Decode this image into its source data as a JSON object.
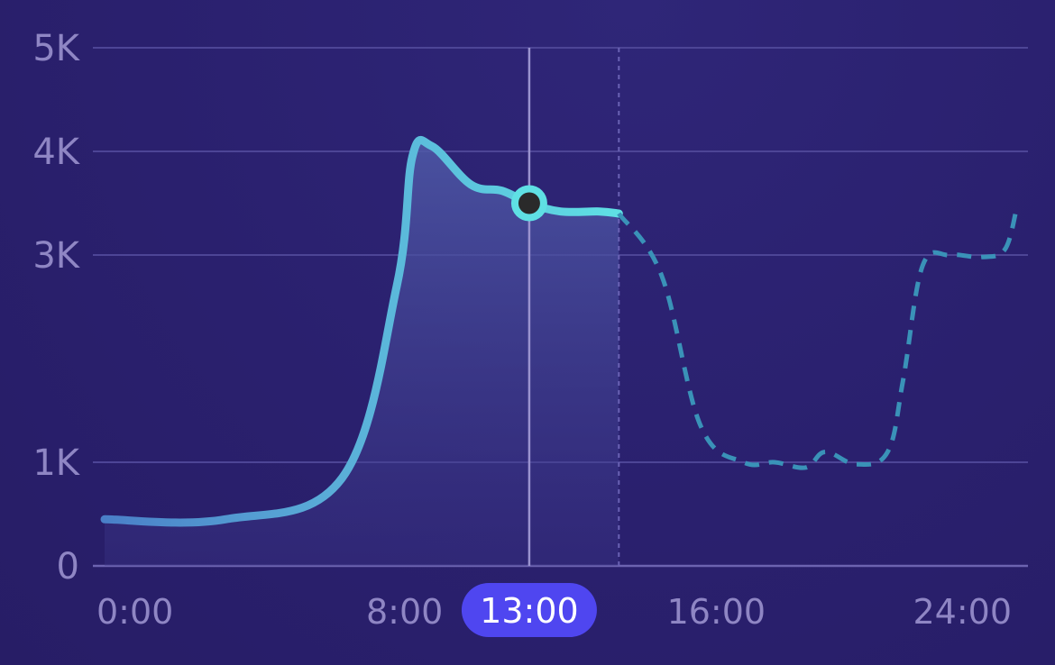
{
  "chart_data": {
    "type": "line",
    "x_unit": "hour",
    "xlim": [
      0,
      24
    ],
    "ylim": [
      0,
      5000
    ],
    "y_ticks": [
      {
        "value": 0,
        "label": "0"
      },
      {
        "value": 1000,
        "label": "1K"
      },
      {
        "value": 3000,
        "label": "3K"
      },
      {
        "value": 4000,
        "label": "4K"
      },
      {
        "value": 5000,
        "label": "5K"
      }
    ],
    "x_ticks": [
      {
        "value": 0,
        "label": "0:00"
      },
      {
        "value": 8,
        "label": "8:00"
      },
      {
        "value": 16,
        "label": "16:00"
      },
      {
        "value": 24,
        "label": "24:00"
      }
    ],
    "grid": true,
    "series": [
      {
        "style": "solid",
        "color": "#5fe0e4",
        "points": [
          [
            0.3,
            450
          ],
          [
            3.4,
            450
          ],
          [
            6.4,
            850
          ],
          [
            7.8,
            2700
          ],
          [
            8.2,
            3950
          ],
          [
            8.7,
            4050
          ],
          [
            9.7,
            3680
          ],
          [
            10.5,
            3620
          ],
          [
            11.2,
            3500
          ],
          [
            12.0,
            3420
          ],
          [
            13.0,
            3420
          ],
          [
            13.5,
            3400
          ]
        ]
      },
      {
        "style": "dashed",
        "color": "#3a92b8",
        "points": [
          [
            13.5,
            3400
          ],
          [
            14.6,
            2800
          ],
          [
            15.6,
            1350
          ],
          [
            16.7,
            1000
          ],
          [
            17.5,
            1000
          ],
          [
            18.3,
            950
          ],
          [
            18.8,
            1100
          ],
          [
            19.6,
            980
          ],
          [
            20.4,
            1100
          ],
          [
            20.8,
            1800
          ],
          [
            21.3,
            2900
          ],
          [
            22.0,
            3000
          ],
          [
            22.8,
            2980
          ],
          [
            23.4,
            3050
          ],
          [
            23.7,
            3430
          ]
        ]
      }
    ],
    "marker": {
      "x": 11.2,
      "y": 3500
    },
    "selected_x_label": "13:00",
    "colors": {
      "line_start": "#4a7fc8",
      "line_end": "#5fe0e4",
      "dashed": "#3a92b8",
      "badge": "#4f46f0",
      "marker_fill": "#2a2a2a",
      "marker_ring": "#5fe0e4"
    }
  }
}
